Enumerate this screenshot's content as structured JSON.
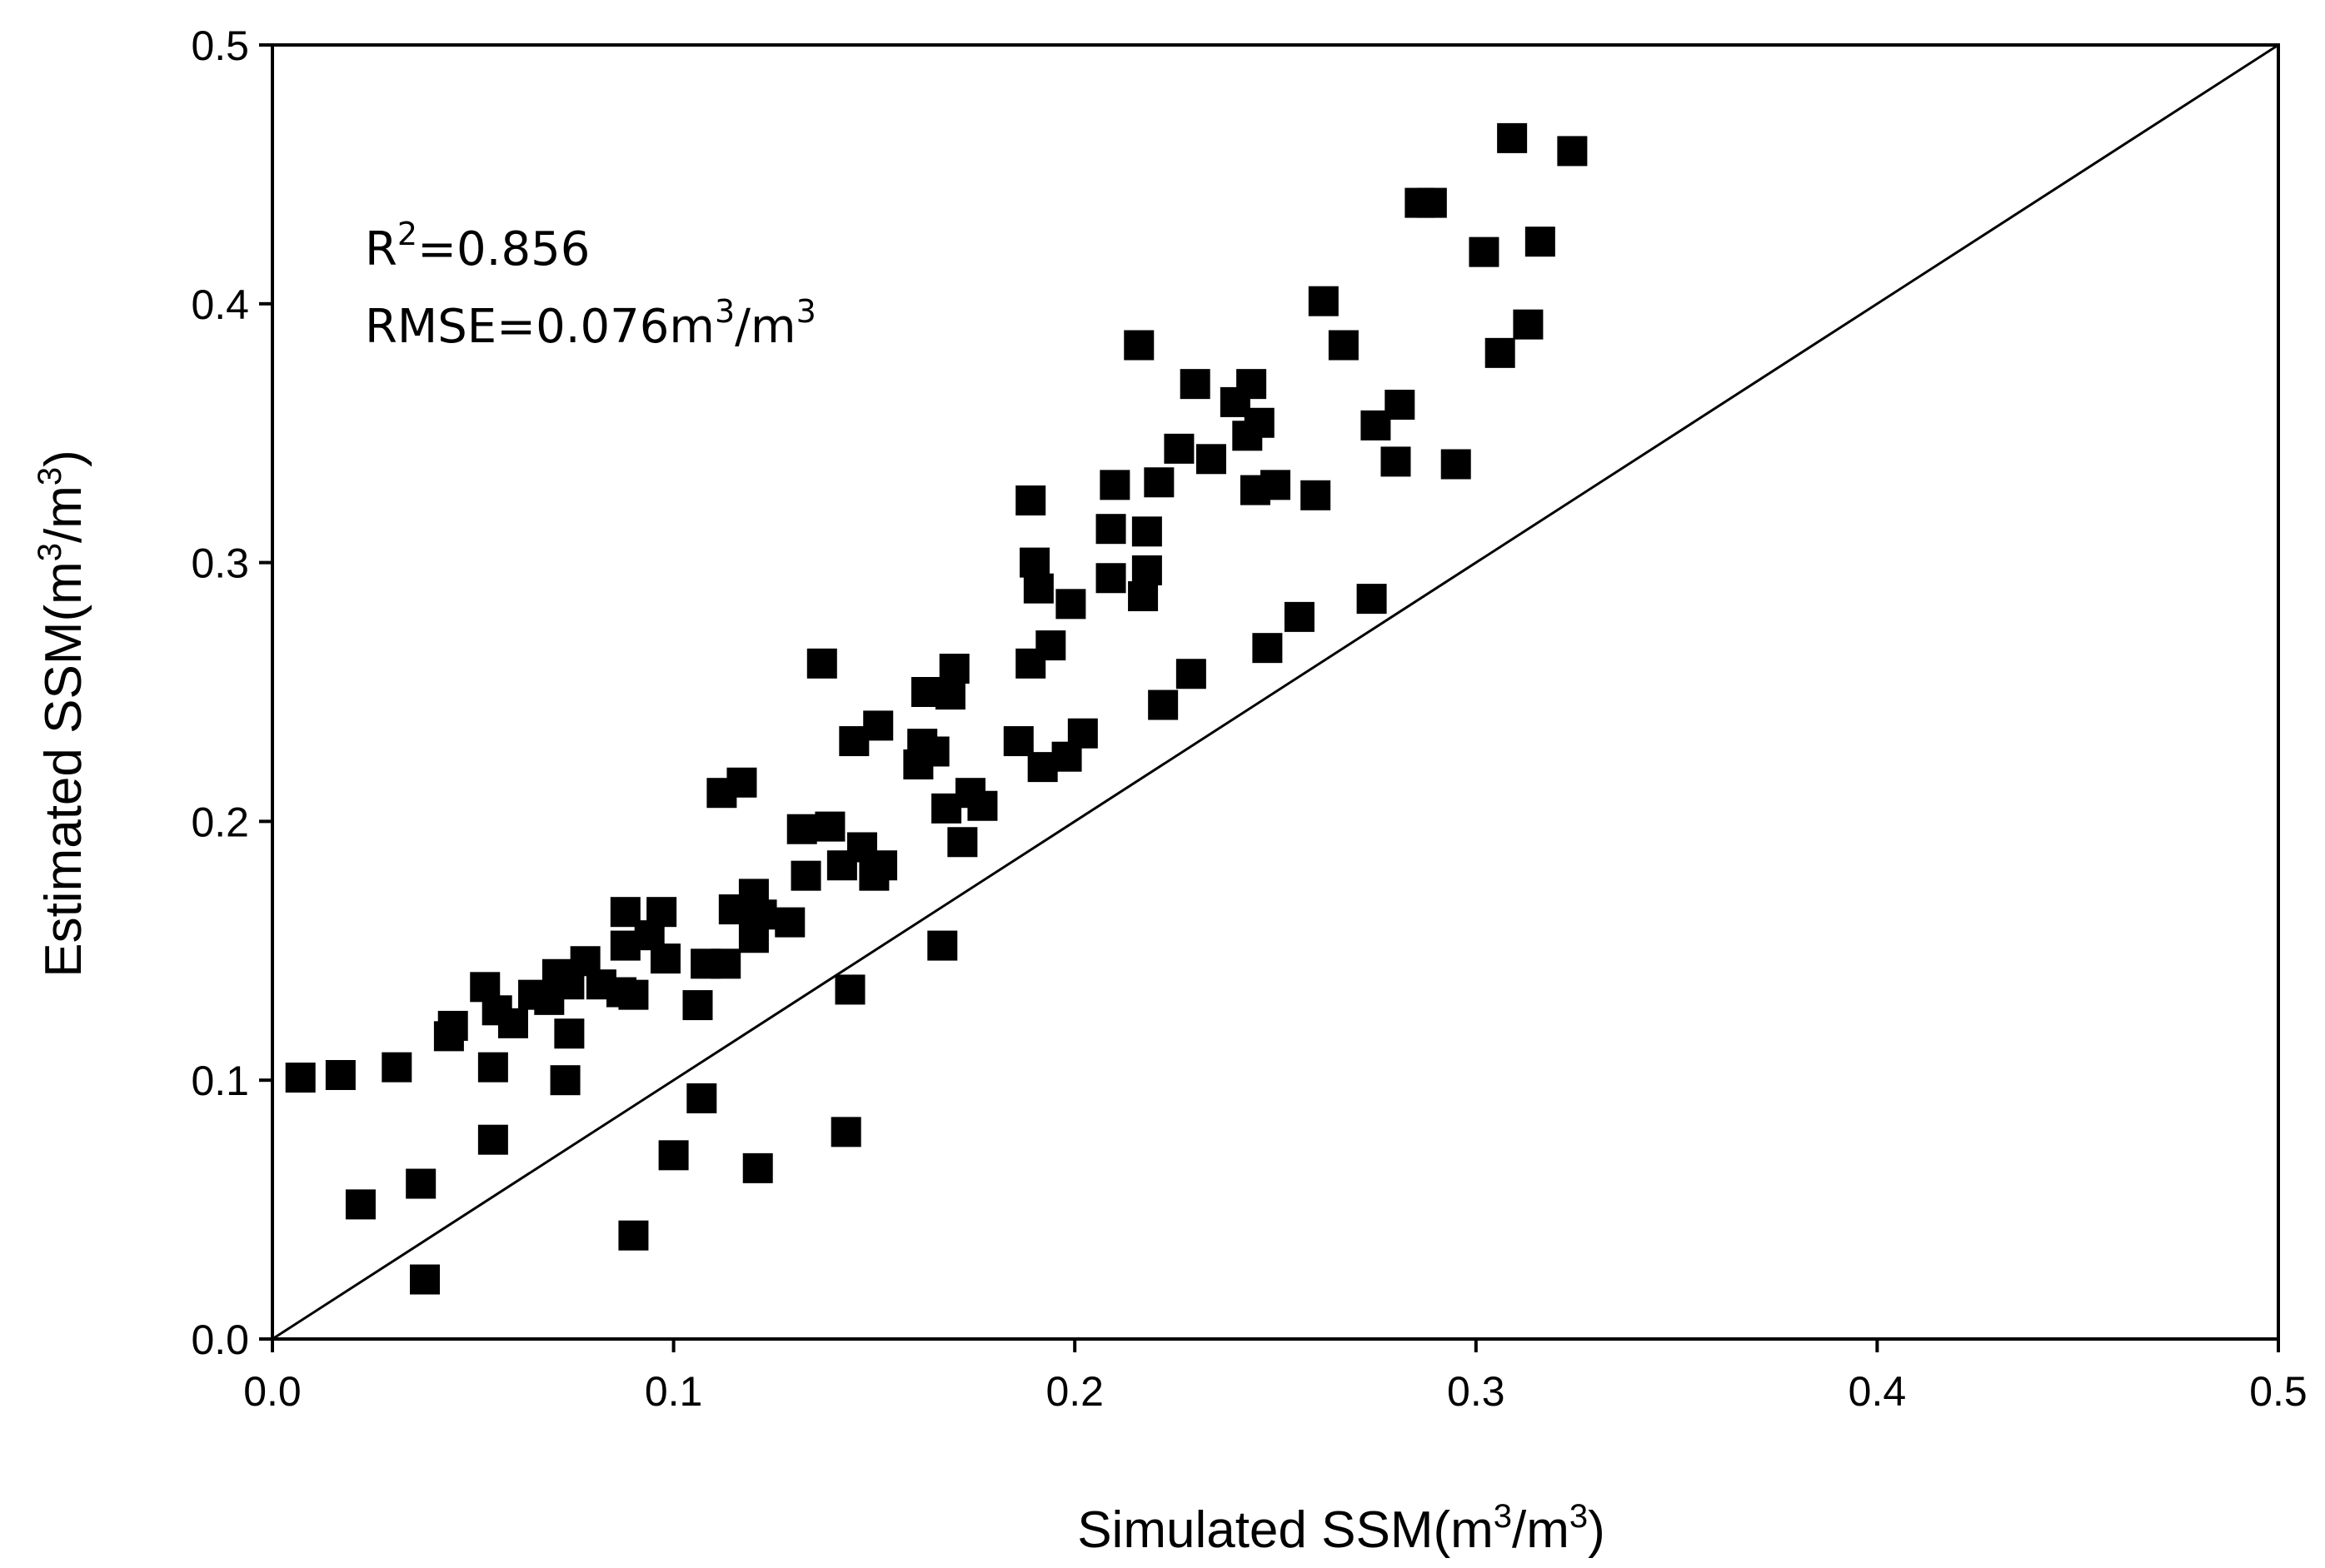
{
  "chart_data": {
    "type": "scatter",
    "xlabel": "Simulated SSM(m",
    "ylabel": "Estimated SSM(m",
    "unit_tail": "/m",
    "unit_sup": "3",
    "unit_close": ")",
    "xlim": [
      0.0,
      0.5
    ],
    "ylim": [
      0.0,
      0.5
    ],
    "x_ticks": [
      "0.0",
      "0.1",
      "0.2",
      "0.3",
      "0.4",
      "0.5"
    ],
    "y_ticks": [
      "0.0",
      "0.1",
      "0.2",
      "0.3",
      "0.4",
      "0.5"
    ],
    "identity_line": true,
    "annotations": {
      "r2_label": "R",
      "r2_sup": "2",
      "r2_value": "=0.856",
      "rmse_label": "RMSE=0.076m",
      "rmse_sup": "3",
      "rmse_mid": "/m",
      "rmse_sup2": "3"
    },
    "points": [
      [
        0.007,
        0.101
      ],
      [
        0.017,
        0.102
      ],
      [
        0.022,
        0.052
      ],
      [
        0.031,
        0.105
      ],
      [
        0.037,
        0.06
      ],
      [
        0.038,
        0.023
      ],
      [
        0.044,
        0.117
      ],
      [
        0.045,
        0.121
      ],
      [
        0.053,
        0.136
      ],
      [
        0.055,
        0.077
      ],
      [
        0.055,
        0.105
      ],
      [
        0.056,
        0.127
      ],
      [
        0.06,
        0.122
      ],
      [
        0.065,
        0.133
      ],
      [
        0.069,
        0.131
      ],
      [
        0.071,
        0.141
      ],
      [
        0.073,
        0.1
      ],
      [
        0.074,
        0.137
      ],
      [
        0.074,
        0.118
      ],
      [
        0.078,
        0.146
      ],
      [
        0.082,
        0.137
      ],
      [
        0.087,
        0.134
      ],
      [
        0.088,
        0.165
      ],
      [
        0.088,
        0.152
      ],
      [
        0.09,
        0.133
      ],
      [
        0.09,
        0.04
      ],
      [
        0.094,
        0.156
      ],
      [
        0.097,
        0.165
      ],
      [
        0.098,
        0.147
      ],
      [
        0.1,
        0.071
      ],
      [
        0.106,
        0.129
      ],
      [
        0.107,
        0.093
      ],
      [
        0.108,
        0.145
      ],
      [
        0.112,
        0.211
      ],
      [
        0.113,
        0.145
      ],
      [
        0.115,
        0.166
      ],
      [
        0.117,
        0.215
      ],
      [
        0.12,
        0.172
      ],
      [
        0.12,
        0.155
      ],
      [
        0.121,
        0.066
      ],
      [
        0.122,
        0.164
      ],
      [
        0.129,
        0.161
      ],
      [
        0.132,
        0.197
      ],
      [
        0.133,
        0.179
      ],
      [
        0.137,
        0.261
      ],
      [
        0.139,
        0.198
      ],
      [
        0.142,
        0.183
      ],
      [
        0.143,
        0.08
      ],
      [
        0.144,
        0.135
      ],
      [
        0.145,
        0.231
      ],
      [
        0.147,
        0.19
      ],
      [
        0.15,
        0.179
      ],
      [
        0.151,
        0.237
      ],
      [
        0.152,
        0.183
      ],
      [
        0.161,
        0.222
      ],
      [
        0.162,
        0.23
      ],
      [
        0.163,
        0.25
      ],
      [
        0.165,
        0.227
      ],
      [
        0.167,
        0.152
      ],
      [
        0.168,
        0.205
      ],
      [
        0.169,
        0.249
      ],
      [
        0.17,
        0.259
      ],
      [
        0.172,
        0.192
      ],
      [
        0.174,
        0.211
      ],
      [
        0.177,
        0.206
      ],
      [
        0.186,
        0.231
      ],
      [
        0.189,
        0.324
      ],
      [
        0.189,
        0.261
      ],
      [
        0.19,
        0.3
      ],
      [
        0.191,
        0.29
      ],
      [
        0.192,
        0.221
      ],
      [
        0.194,
        0.268
      ],
      [
        0.198,
        0.225
      ],
      [
        0.199,
        0.284
      ],
      [
        0.202,
        0.234
      ],
      [
        0.209,
        0.294
      ],
      [
        0.209,
        0.313
      ],
      [
        0.21,
        0.33
      ],
      [
        0.216,
        0.384
      ],
      [
        0.217,
        0.287
      ],
      [
        0.218,
        0.297
      ],
      [
        0.218,
        0.312
      ],
      [
        0.221,
        0.331
      ],
      [
        0.222,
        0.245
      ],
      [
        0.226,
        0.344
      ],
      [
        0.229,
        0.257
      ],
      [
        0.23,
        0.369
      ],
      [
        0.234,
        0.34
      ],
      [
        0.24,
        0.362
      ],
      [
        0.243,
        0.349
      ],
      [
        0.244,
        0.369
      ],
      [
        0.245,
        0.328
      ],
      [
        0.246,
        0.354
      ],
      [
        0.248,
        0.267
      ],
      [
        0.25,
        0.33
      ],
      [
        0.256,
        0.279
      ],
      [
        0.26,
        0.326
      ],
      [
        0.262,
        0.401
      ],
      [
        0.267,
        0.384
      ],
      [
        0.274,
        0.286
      ],
      [
        0.275,
        0.353
      ],
      [
        0.28,
        0.339
      ],
      [
        0.281,
        0.361
      ],
      [
        0.286,
        0.439
      ],
      [
        0.289,
        0.439
      ],
      [
        0.295,
        0.338
      ],
      [
        0.302,
        0.42
      ],
      [
        0.306,
        0.381
      ],
      [
        0.309,
        0.464
      ],
      [
        0.313,
        0.392
      ],
      [
        0.316,
        0.424
      ],
      [
        0.324,
        0.459
      ]
    ]
  }
}
